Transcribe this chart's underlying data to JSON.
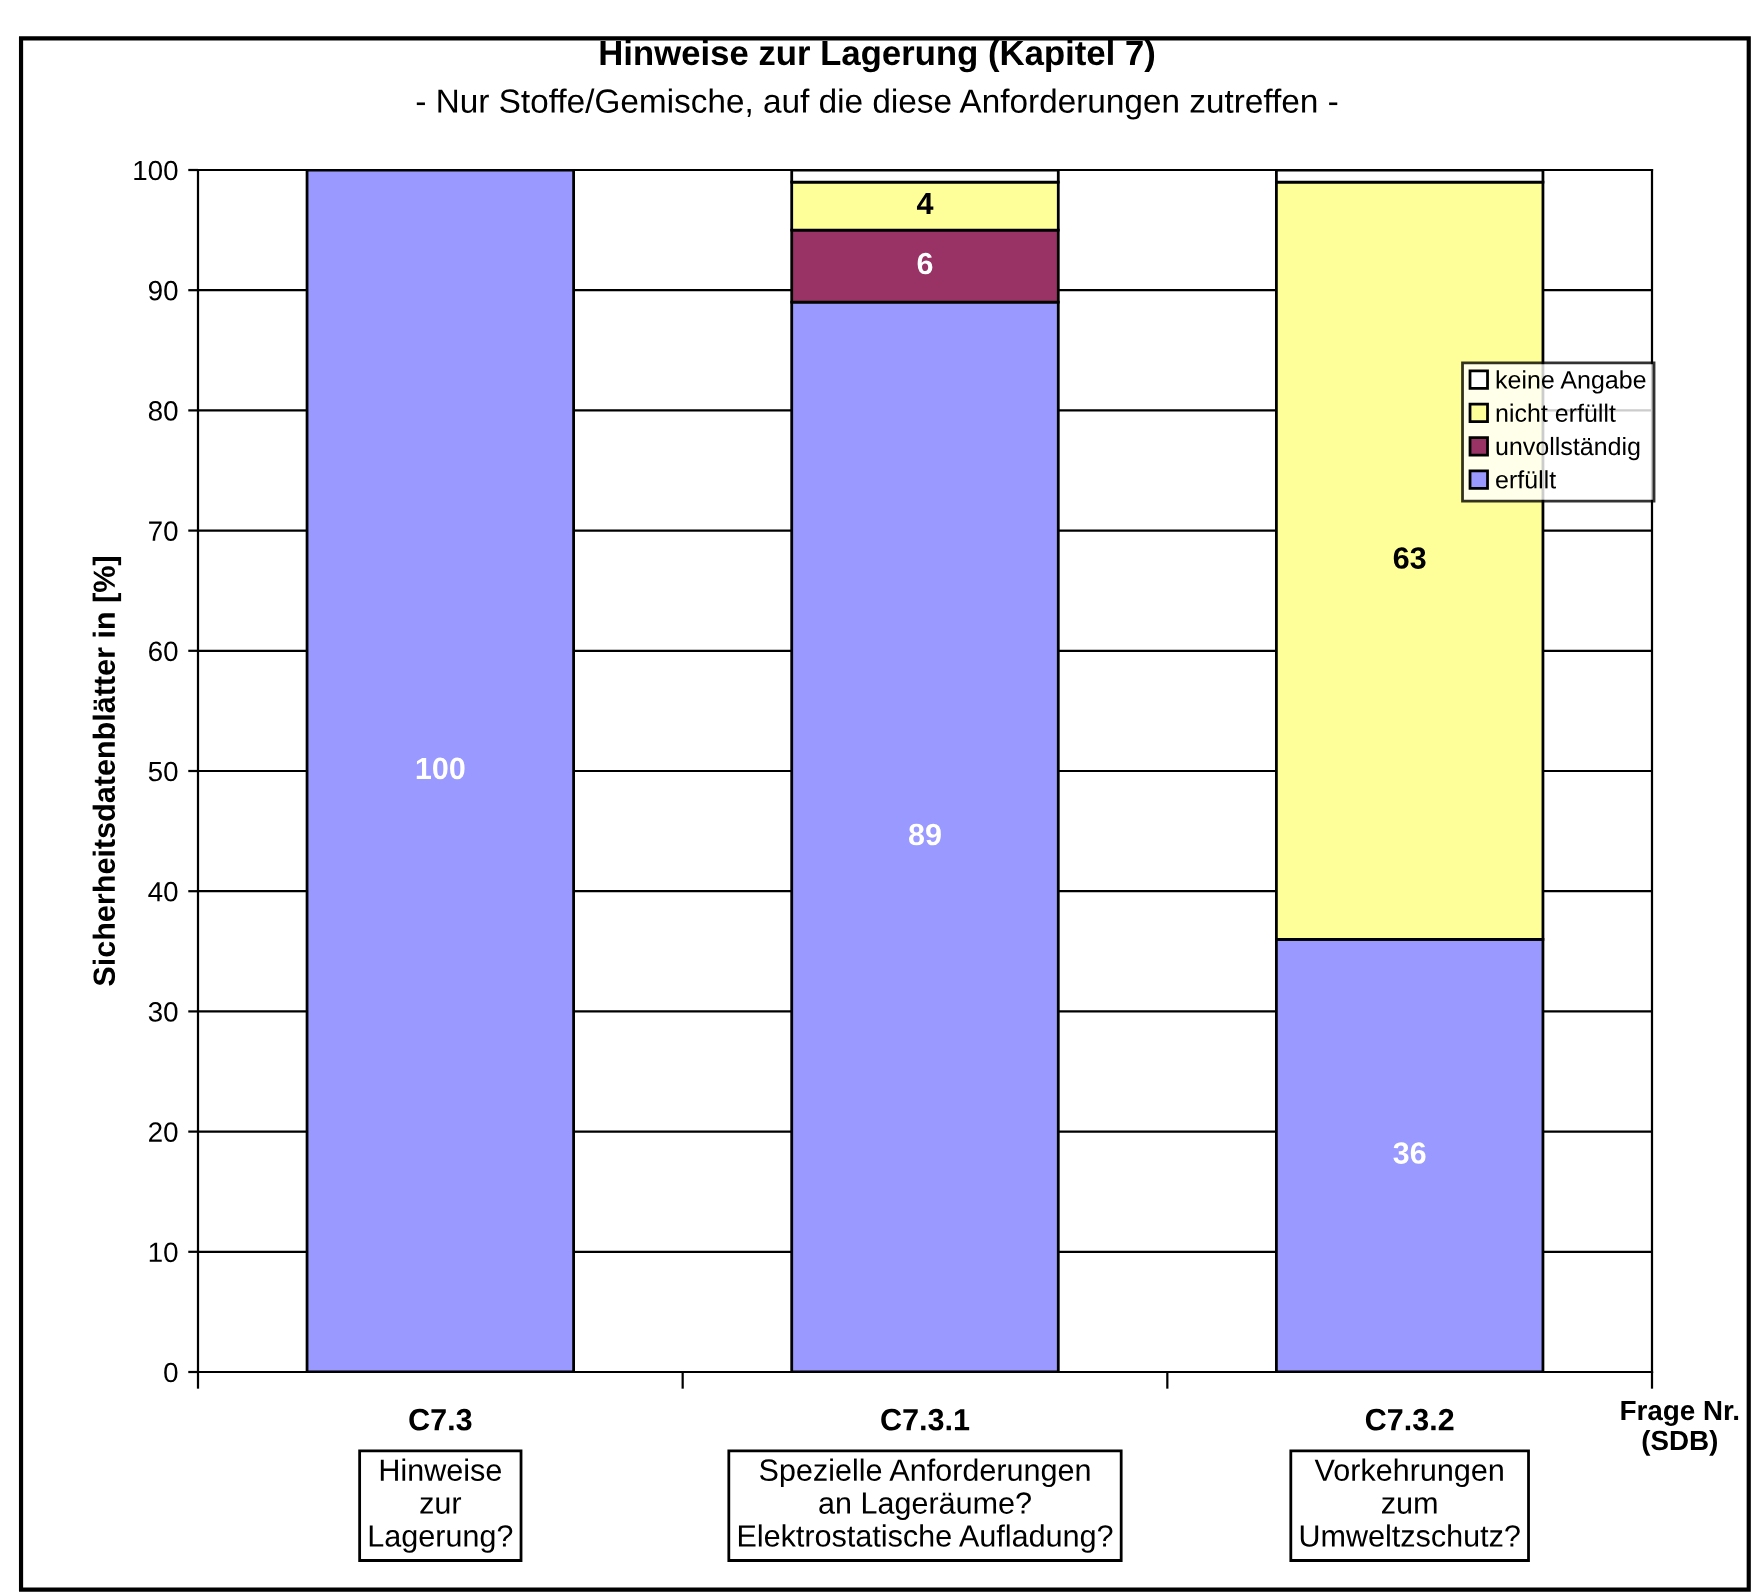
{
  "chart_data": {
    "type": "bar",
    "stacked": true,
    "title": "Hinweise zur Lagerung (Kapitel 7)",
    "subtitle": "- Nur Stoffe/Gemische, auf die diese Anforderungen zutreffen -",
    "categories": [
      "C7.3\nHinweise\nzur\nLagerung?",
      "C7.3.1\nSpezielle Anforderungen\nan Lageräume?\nElektrostatische Aufladung?",
      "C7.3.2\nVorkehrungen\nzum\nUmweltzschutz?"
    ],
    "xlabel": "Frage Nr.\n(SDB)",
    "ylabel": "Sicherheitsdatenblätter in [%]",
    "ylim": [
      0,
      100
    ],
    "yticks": [
      0,
      10,
      20,
      30,
      40,
      50,
      60,
      70,
      80,
      90,
      100
    ],
    "grid": "y",
    "legend": "right",
    "series": [
      {
        "name": "erfüllt",
        "color": "#9999ff",
        "values": [
          100,
          89,
          36
        ],
        "value_labels": [
          "100",
          "89",
          "36"
        ]
      },
      {
        "name": "unvollständig",
        "color": "#993366",
        "values": [
          null,
          6,
          null
        ],
        "value_labels": [
          null,
          "6",
          null
        ]
      },
      {
        "name": "nicht erfüllt",
        "color": "#ffff99",
        "values": [
          null,
          4,
          63
        ],
        "value_labels": [
          null,
          "4",
          "63"
        ]
      },
      {
        "name": "keine Angabe",
        "color": "#ffffff",
        "values": [
          null,
          1,
          1
        ],
        "value_labels": [
          null,
          null,
          null
        ]
      }
    ]
  }
}
